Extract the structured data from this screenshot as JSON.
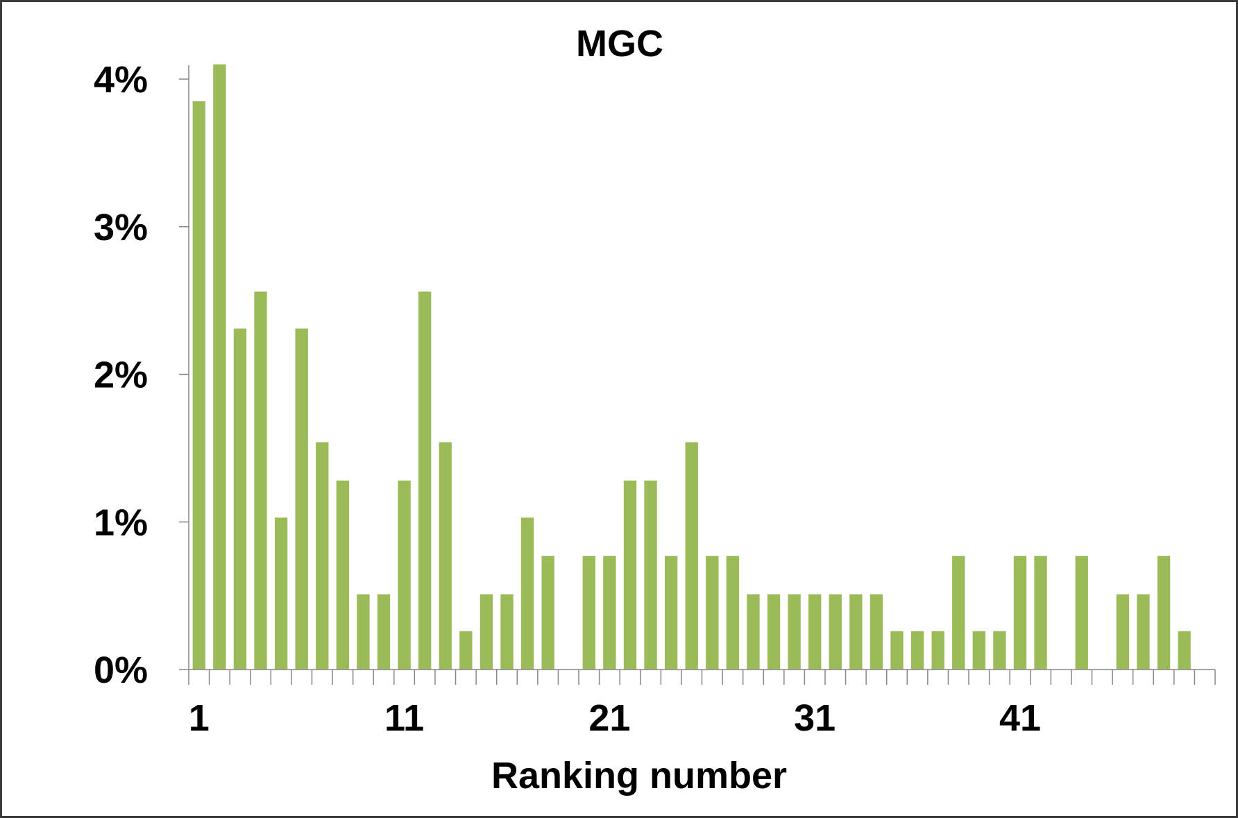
{
  "chart_data": {
    "type": "bar",
    "title": "MGC",
    "xlabel": "Ranking number",
    "ylabel": "",
    "categories": [
      1,
      2,
      3,
      4,
      5,
      6,
      7,
      8,
      9,
      10,
      11,
      12,
      13,
      14,
      15,
      16,
      17,
      18,
      19,
      20,
      21,
      22,
      23,
      24,
      25,
      26,
      27,
      28,
      29,
      30,
      31,
      32,
      33,
      34,
      35,
      36,
      37,
      38,
      39,
      40,
      41,
      42,
      43,
      44,
      45,
      46,
      47,
      48,
      49,
      50
    ],
    "values": [
      3.85,
      4.1,
      2.31,
      2.56,
      1.03,
      2.31,
      1.54,
      1.28,
      0.51,
      0.51,
      1.28,
      2.56,
      1.54,
      0.26,
      0.51,
      0.51,
      1.03,
      0.77,
      0,
      0.77,
      0.77,
      1.28,
      1.28,
      0.77,
      1.54,
      0.77,
      0.77,
      0.51,
      0.51,
      0.51,
      0.51,
      0.51,
      0.51,
      0.51,
      0.26,
      0.26,
      0.26,
      0.77,
      0.26,
      0.26,
      0.77,
      0.77,
      0,
      0.77,
      0,
      0.51,
      0.51,
      0.77,
      0.26,
      0
    ],
    "unit": "%",
    "ylim": [
      0,
      4
    ],
    "yticks": [
      "0%",
      "1%",
      "2%",
      "3%",
      "4%"
    ],
    "ytick_values": [
      0,
      1,
      2,
      3,
      4
    ],
    "xtick_labels": [
      "1",
      "11",
      "21",
      "31",
      "41"
    ],
    "xtick_categories": [
      1,
      11,
      21,
      31,
      41
    ],
    "grid": false,
    "legend": "none",
    "bar_color": "#9bbb59",
    "axis_color": "#868686"
  }
}
